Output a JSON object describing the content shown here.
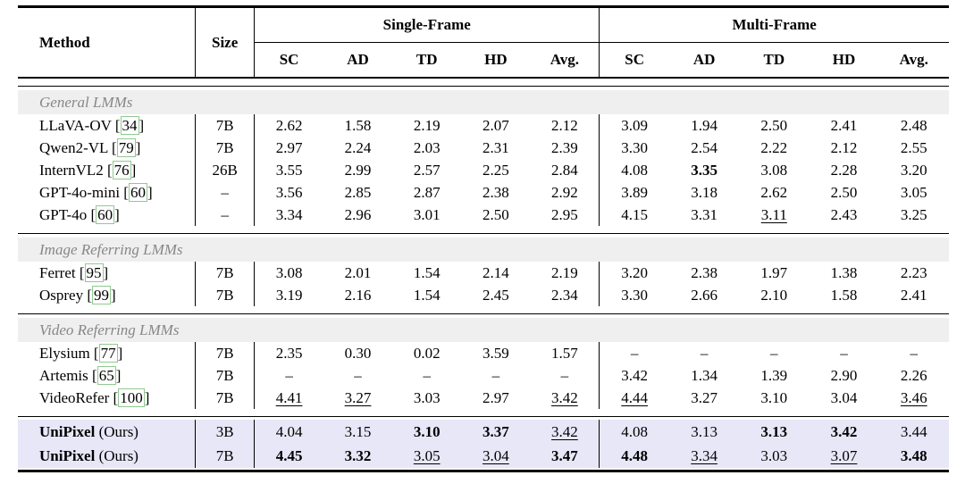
{
  "table": {
    "headers": {
      "method": "Method",
      "size": "Size",
      "group1": "Single-Frame",
      "group2": "Multi-Frame",
      "metrics": [
        "SC",
        "AD",
        "TD",
        "HD",
        "Avg."
      ]
    },
    "sections": [
      {
        "title": "General LMMs",
        "rows": [
          {
            "method": "LLaVA-OV",
            "cite": "34",
            "size": "7B",
            "sf": [
              "2.62",
              "1.58",
              "2.19",
              "2.07",
              "2.12"
            ],
            "sf_style": [
              "",
              "",
              "",
              "",
              ""
            ],
            "mf": [
              "3.09",
              "1.94",
              "2.50",
              "2.41",
              "2.48"
            ],
            "mf_style": [
              "",
              "",
              "",
              "",
              ""
            ]
          },
          {
            "method": "Qwen2-VL",
            "cite": "79",
            "size": "7B",
            "sf": [
              "2.97",
              "2.24",
              "2.03",
              "2.31",
              "2.39"
            ],
            "sf_style": [
              "",
              "",
              "",
              "",
              ""
            ],
            "mf": [
              "3.30",
              "2.54",
              "2.22",
              "2.12",
              "2.55"
            ],
            "mf_style": [
              "",
              "",
              "",
              "",
              ""
            ]
          },
          {
            "method": "InternVL2",
            "cite": "76",
            "size": "26B",
            "sf": [
              "3.55",
              "2.99",
              "2.57",
              "2.25",
              "2.84"
            ],
            "sf_style": [
              "",
              "",
              "",
              "",
              ""
            ],
            "mf": [
              "4.08",
              "3.35",
              "3.08",
              "2.28",
              "3.20"
            ],
            "mf_style": [
              "",
              "b",
              "",
              "",
              ""
            ]
          },
          {
            "method": "GPT-4o-mini",
            "cite": "60",
            "size": "–",
            "sf": [
              "3.56",
              "2.85",
              "2.87",
              "2.38",
              "2.92"
            ],
            "sf_style": [
              "",
              "",
              "",
              "",
              ""
            ],
            "mf": [
              "3.89",
              "3.18",
              "2.62",
              "2.50",
              "3.05"
            ],
            "mf_style": [
              "",
              "",
              "",
              "",
              ""
            ]
          },
          {
            "method": "GPT-4o",
            "cite": "60",
            "size": "–",
            "sf": [
              "3.34",
              "2.96",
              "3.01",
              "2.50",
              "2.95"
            ],
            "sf_style": [
              "",
              "",
              "",
              "",
              ""
            ],
            "mf": [
              "4.15",
              "3.31",
              "3.11",
              "2.43",
              "3.25"
            ],
            "mf_style": [
              "",
              "",
              "u",
              "",
              ""
            ]
          }
        ]
      },
      {
        "title": "Image Referring LMMs",
        "rows": [
          {
            "method": "Ferret",
            "cite": "95",
            "size": "7B",
            "sf": [
              "3.08",
              "2.01",
              "1.54",
              "2.14",
              "2.19"
            ],
            "sf_style": [
              "",
              "",
              "",
              "",
              ""
            ],
            "mf": [
              "3.20",
              "2.38",
              "1.97",
              "1.38",
              "2.23"
            ],
            "mf_style": [
              "",
              "",
              "",
              "",
              ""
            ]
          },
          {
            "method": "Osprey",
            "cite": "99",
            "size": "7B",
            "sf": [
              "3.19",
              "2.16",
              "1.54",
              "2.45",
              "2.34"
            ],
            "sf_style": [
              "",
              "",
              "",
              "",
              ""
            ],
            "mf": [
              "3.30",
              "2.66",
              "2.10",
              "1.58",
              "2.41"
            ],
            "mf_style": [
              "",
              "",
              "",
              "",
              ""
            ]
          }
        ]
      },
      {
        "title": "Video Referring LMMs",
        "rows": [
          {
            "method": "Elysium",
            "cite": "77",
            "size": "7B",
            "sf": [
              "2.35",
              "0.30",
              "0.02",
              "3.59",
              "1.57"
            ],
            "sf_style": [
              "",
              "",
              "",
              "",
              ""
            ],
            "mf": [
              "–",
              "–",
              "–",
              "–",
              "–"
            ],
            "mf_style": [
              "",
              "",
              "",
              "",
              ""
            ]
          },
          {
            "method": "Artemis",
            "cite": "65",
            "size": "7B",
            "sf": [
              "–",
              "–",
              "–",
              "–",
              "–"
            ],
            "sf_style": [
              "",
              "",
              "",
              "",
              ""
            ],
            "mf": [
              "3.42",
              "1.34",
              "1.39",
              "2.90",
              "2.26"
            ],
            "mf_style": [
              "",
              "",
              "",
              "",
              ""
            ]
          },
          {
            "method": "VideoRefer",
            "cite": "100",
            "size": "7B",
            "sf": [
              "4.41",
              "3.27",
              "3.03",
              "2.97",
              "3.42"
            ],
            "sf_style": [
              "u",
              "u",
              "",
              "",
              "u"
            ],
            "mf": [
              "4.44",
              "3.27",
              "3.10",
              "3.04",
              "3.46"
            ],
            "mf_style": [
              "u",
              "",
              "",
              "",
              "u"
            ]
          }
        ]
      }
    ],
    "highlight_rows": [
      {
        "method": "UniPixel",
        "method_suffix": " (Ours)",
        "size": "3B",
        "sf": [
          "4.04",
          "3.15",
          "3.10",
          "3.37",
          "3.42"
        ],
        "sf_style": [
          "",
          "",
          "b",
          "b",
          "u"
        ],
        "mf": [
          "4.08",
          "3.13",
          "3.13",
          "3.42",
          "3.44"
        ],
        "mf_style": [
          "",
          "",
          "b",
          "b",
          ""
        ]
      },
      {
        "method": "UniPixel",
        "method_suffix": " (Ours)",
        "size": "7B",
        "sf": [
          "4.45",
          "3.32",
          "3.05",
          "3.04",
          "3.47"
        ],
        "sf_style": [
          "b",
          "b",
          "u",
          "u",
          "b"
        ],
        "mf": [
          "4.48",
          "3.34",
          "3.03",
          "3.07",
          "3.48"
        ],
        "mf_style": [
          "b",
          "u",
          "",
          "u",
          "b"
        ]
      }
    ],
    "colors": {
      "section_bar_bg": "#EFEFEF",
      "section_text": "#878787",
      "highlight_bg": "#E7E7F8",
      "citation_border": "#90C990",
      "rule_color": "#000000"
    }
  }
}
